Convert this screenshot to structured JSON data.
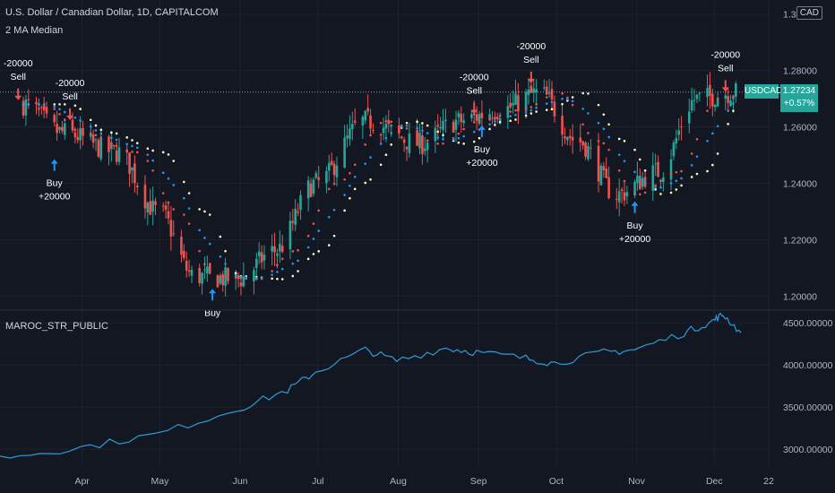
{
  "header": {
    "title": "U.S. Dollar / Canadian Dollar, 1D, CAPITALCOM",
    "indicator": "2 MA Median",
    "currency_button": "CAD"
  },
  "last_price": {
    "symbol": "USDCAD",
    "value": "1.27234",
    "change": "+0.57%"
  },
  "colors": {
    "background": "#131722",
    "grid": "#1e222d",
    "candle_up": "#26a69a",
    "candle_down": "#ef5350",
    "ma_fast": "#ef5350",
    "ma_slow": "#fff9c4",
    "ma_median": "#2196f3",
    "buy_arrow": "#2196f3",
    "sell_arrow": "#ef5350",
    "equity_line": "#2e9bd6"
  },
  "chart_data": [
    {
      "type": "candlestick",
      "title": "U.S. Dollar / Canadian Dollar, 1D, CAPITALCOM",
      "x_ticks": [
        "Apr",
        "May",
        "Jun",
        "Jul",
        "Aug",
        "Sep",
        "Oct",
        "Nov",
        "Dec",
        "22"
      ],
      "y_ticks": [
        "1.3",
        "1.28000",
        "1.26000",
        "1.24000",
        "1.22000",
        "1.20000"
      ],
      "ylim": [
        1.195,
        1.305
      ],
      "grid": true,
      "ohlc_samples": [
        {
          "date": "2021-03-10",
          "close": 1.268
        },
        {
          "date": "2021-03-25",
          "close": 1.258
        },
        {
          "date": "2021-04-15",
          "close": 1.251
        },
        {
          "date": "2021-05-01",
          "close": 1.23
        },
        {
          "date": "2021-05-15",
          "close": 1.207
        },
        {
          "date": "2021-06-01",
          "close": 1.206
        },
        {
          "date": "2021-06-15",
          "close": 1.216
        },
        {
          "date": "2021-07-01",
          "close": 1.24
        },
        {
          "date": "2021-07-20",
          "close": 1.262
        },
        {
          "date": "2021-08-10",
          "close": 1.254
        },
        {
          "date": "2021-08-25",
          "close": 1.262
        },
        {
          "date": "2021-09-10",
          "close": 1.266
        },
        {
          "date": "2021-09-25",
          "close": 1.272
        },
        {
          "date": "2021-10-10",
          "close": 1.255
        },
        {
          "date": "2021-10-25",
          "close": 1.236
        },
        {
          "date": "2021-11-10",
          "close": 1.244
        },
        {
          "date": "2021-11-25",
          "close": 1.27
        },
        {
          "date": "2021-12-10",
          "close": 1.27234
        }
      ],
      "signals": [
        {
          "side": "sell",
          "label": "-20000",
          "word": "Sell",
          "date": "2021-03-08",
          "price": 1.272
        },
        {
          "side": "sell",
          "label": "-20000",
          "word": "Sell",
          "date": "2021-03-28",
          "price": 1.265
        },
        {
          "side": "buy",
          "label": "+20000",
          "word": "Buy",
          "date": "2021-03-22",
          "price": 1.246
        },
        {
          "side": "buy",
          "label": "",
          "word": "Buy",
          "date": "2021-05-22",
          "price": 1.2
        },
        {
          "side": "sell",
          "label": "-20000",
          "word": "Sell",
          "date": "2021-08-31",
          "price": 1.267
        },
        {
          "side": "buy",
          "label": "+20000",
          "word": "Buy",
          "date": "2021-09-03",
          "price": 1.258
        },
        {
          "side": "sell",
          "label": "-20000",
          "word": "Sell",
          "date": "2021-09-22",
          "price": 1.278
        },
        {
          "side": "buy",
          "label": "+20000",
          "word": "Buy",
          "date": "2021-11-01",
          "price": 1.231
        },
        {
          "side": "sell",
          "label": "-20000",
          "word": "Sell",
          "date": "2021-12-06",
          "price": 1.275
        }
      ]
    },
    {
      "type": "line",
      "title": "MAROC_STR_PUBLIC",
      "y_ticks": [
        "4500.00000",
        "4000.00000",
        "3500.00000",
        "3000.00000"
      ],
      "ylim": [
        2800,
        4650
      ],
      "grid": true,
      "x": [
        "2021-03-01",
        "2021-04-01",
        "2021-05-01",
        "2021-06-01",
        "2021-06-20",
        "2021-07-01",
        "2021-07-20",
        "2021-08-01",
        "2021-08-20",
        "2021-09-01",
        "2021-09-20",
        "2021-10-01",
        "2021-10-20",
        "2021-11-01",
        "2021-11-20",
        "2021-12-01",
        "2021-12-05",
        "2021-12-12"
      ],
      "values": [
        2900,
        3020,
        3180,
        3480,
        3700,
        3920,
        4180,
        4050,
        4200,
        4150,
        4080,
        4020,
        4150,
        4180,
        4380,
        4520,
        4600,
        4380
      ]
    }
  ]
}
